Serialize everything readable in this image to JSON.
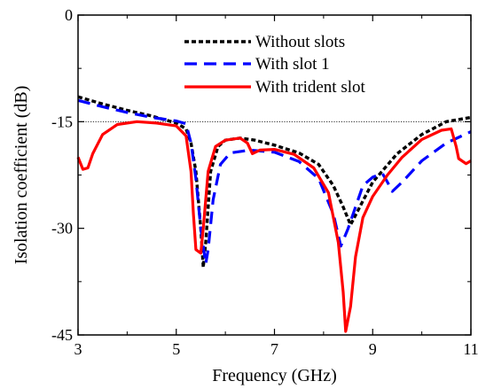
{
  "chart_data": {
    "type": "line",
    "title": "",
    "xlabel": "Frequency (GHz)",
    "ylabel": "Isolation coefficient (dB)",
    "xlim": [
      3,
      11
    ],
    "ylim": [
      -45,
      0
    ],
    "xticks": [
      3,
      5,
      7,
      9,
      11
    ],
    "xtick_labels": [
      "3",
      "5",
      "7",
      "9",
      "11"
    ],
    "yticks": [
      0,
      -15,
      -30,
      -45
    ],
    "ytick_labels": [
      "0",
      "-15",
      "-30",
      "-45"
    ],
    "reference_line": {
      "y": -15,
      "style": "dotted"
    },
    "legend": {
      "placement": "top-right"
    },
    "grid": false,
    "series": [
      {
        "name": "Without slots",
        "color": "#000000",
        "dash": "dotted",
        "points": [
          [
            3.0,
            -11.5
          ],
          [
            3.5,
            -12.5
          ],
          [
            4.0,
            -13.4
          ],
          [
            4.5,
            -14.2
          ],
          [
            5.0,
            -15.2
          ],
          [
            5.2,
            -16.0
          ],
          [
            5.3,
            -18.0
          ],
          [
            5.4,
            -22.0
          ],
          [
            5.5,
            -30.0
          ],
          [
            5.55,
            -35.5
          ],
          [
            5.6,
            -32.0
          ],
          [
            5.7,
            -22.0
          ],
          [
            5.85,
            -18.5
          ],
          [
            6.0,
            -17.6
          ],
          [
            6.3,
            -17.3
          ],
          [
            6.6,
            -17.6
          ],
          [
            7.0,
            -18.3
          ],
          [
            7.5,
            -19.4
          ],
          [
            7.9,
            -21.0
          ],
          [
            8.2,
            -24.0
          ],
          [
            8.4,
            -27.0
          ],
          [
            8.55,
            -29.5
          ],
          [
            8.7,
            -27.5
          ],
          [
            9.0,
            -23.5
          ],
          [
            9.5,
            -19.5
          ],
          [
            10.0,
            -16.8
          ],
          [
            10.5,
            -15.0
          ],
          [
            11.0,
            -14.4
          ]
        ]
      },
      {
        "name": "With slot 1",
        "color": "#0000ff",
        "dash": "dashed",
        "points": [
          [
            3.0,
            -12.0
          ],
          [
            3.5,
            -12.9
          ],
          [
            4.0,
            -13.7
          ],
          [
            4.5,
            -14.4
          ],
          [
            5.0,
            -14.9
          ],
          [
            5.2,
            -15.3
          ],
          [
            5.3,
            -18.0
          ],
          [
            5.4,
            -23.0
          ],
          [
            5.5,
            -30.0
          ],
          [
            5.6,
            -35.0
          ],
          [
            5.65,
            -33.0
          ],
          [
            5.75,
            -26.0
          ],
          [
            5.9,
            -21.0
          ],
          [
            6.1,
            -19.4
          ],
          [
            6.5,
            -19.0
          ],
          [
            7.0,
            -19.3
          ],
          [
            7.5,
            -20.6
          ],
          [
            7.9,
            -23.0
          ],
          [
            8.2,
            -28.0
          ],
          [
            8.35,
            -32.5
          ],
          [
            8.5,
            -30.0
          ],
          [
            8.8,
            -24.0
          ],
          [
            9.0,
            -22.8
          ],
          [
            9.2,
            -22.3
          ],
          [
            9.3,
            -23.5
          ],
          [
            9.4,
            -24.8
          ],
          [
            9.6,
            -23.5
          ],
          [
            10.0,
            -20.5
          ],
          [
            10.5,
            -18.0
          ],
          [
            11.0,
            -16.4
          ]
        ]
      },
      {
        "name": "With trident slot",
        "color": "#ff0000",
        "dash": "solid",
        "points": [
          [
            3.0,
            -20.0
          ],
          [
            3.1,
            -21.7
          ],
          [
            3.2,
            -21.5
          ],
          [
            3.3,
            -19.5
          ],
          [
            3.5,
            -16.8
          ],
          [
            3.8,
            -15.4
          ],
          [
            4.2,
            -15.0
          ],
          [
            4.6,
            -15.2
          ],
          [
            5.0,
            -15.6
          ],
          [
            5.2,
            -17.0
          ],
          [
            5.3,
            -22.0
          ],
          [
            5.35,
            -28.0
          ],
          [
            5.4,
            -33.0
          ],
          [
            5.5,
            -33.5
          ],
          [
            5.55,
            -30.0
          ],
          [
            5.65,
            -22.0
          ],
          [
            5.8,
            -18.5
          ],
          [
            6.0,
            -17.6
          ],
          [
            6.3,
            -17.3
          ],
          [
            6.45,
            -18.0
          ],
          [
            6.55,
            -19.5
          ],
          [
            6.7,
            -19.0
          ],
          [
            7.0,
            -18.9
          ],
          [
            7.4,
            -19.6
          ],
          [
            7.8,
            -21.5
          ],
          [
            8.1,
            -25.0
          ],
          [
            8.3,
            -32.0
          ],
          [
            8.4,
            -39.0
          ],
          [
            8.45,
            -44.5
          ],
          [
            8.55,
            -41.0
          ],
          [
            8.65,
            -34.0
          ],
          [
            8.8,
            -28.5
          ],
          [
            9.0,
            -25.5
          ],
          [
            9.3,
            -22.5
          ],
          [
            9.6,
            -20.0
          ],
          [
            10.0,
            -17.5
          ],
          [
            10.4,
            -16.2
          ],
          [
            10.6,
            -16.0
          ],
          [
            10.7,
            -18.5
          ],
          [
            10.75,
            -20.2
          ],
          [
            10.9,
            -20.9
          ],
          [
            11.0,
            -20.5
          ]
        ]
      }
    ]
  }
}
